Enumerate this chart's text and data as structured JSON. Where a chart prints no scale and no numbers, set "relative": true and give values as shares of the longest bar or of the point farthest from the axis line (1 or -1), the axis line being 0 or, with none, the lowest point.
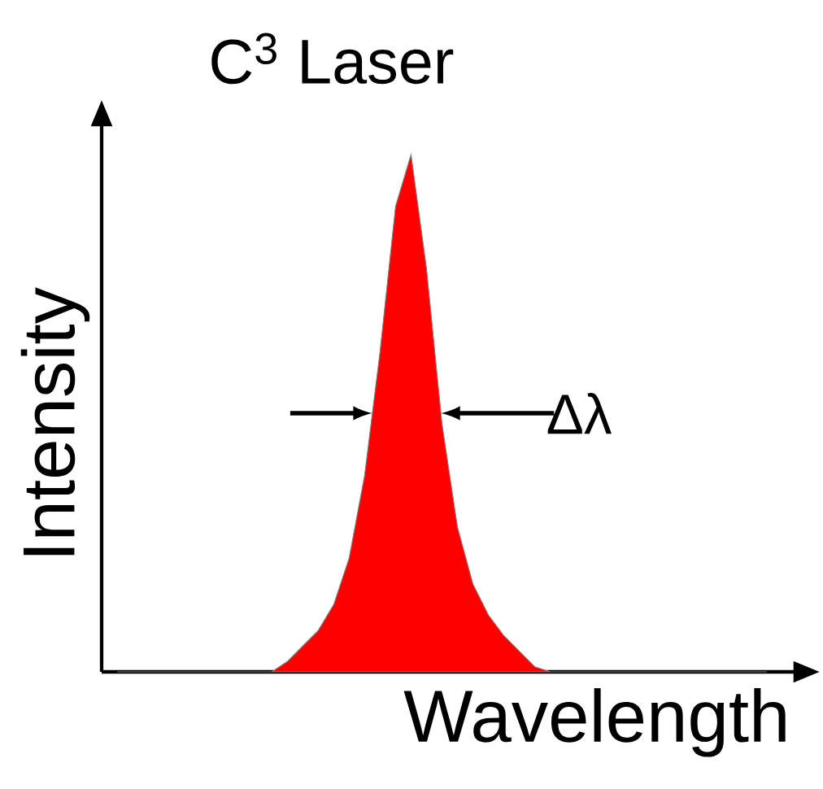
{
  "chart_data": {
    "type": "area",
    "title": "C$^{3}$ Laser",
    "xlabel": "Wavelength",
    "ylabel": "Intensity",
    "relative": true,
    "color": "#ff0000",
    "annotations": [
      "Δλ"
    ],
    "categories": [
      null,
      null,
      null,
      null,
      null,
      null,
      null,
      null,
      null,
      null,
      null,
      null,
      null,
      null,
      null,
      null,
      null,
      null,
      null,
      null,
      null,
      null,
      null,
      null,
      null,
      null,
      null,
      null,
      null,
      null,
      null,
      null,
      null,
      null,
      null,
      null,
      null,
      null,
      null,
      null,
      null,
      null,
      null
    ],
    "values": [
      0,
      0,
      0,
      0,
      0,
      0,
      0,
      0,
      0,
      0,
      0,
      0.02,
      0.05,
      0.08,
      0.13,
      0.22,
      0.38,
      0.62,
      0.9,
      1,
      0.78,
      0.48,
      0.28,
      0.17,
      0.11,
      0.07,
      0.04,
      0.01,
      0,
      0,
      0,
      0,
      0,
      0,
      0,
      0,
      0,
      0,
      0,
      0,
      0,
      0,
      0
    ]
  }
}
